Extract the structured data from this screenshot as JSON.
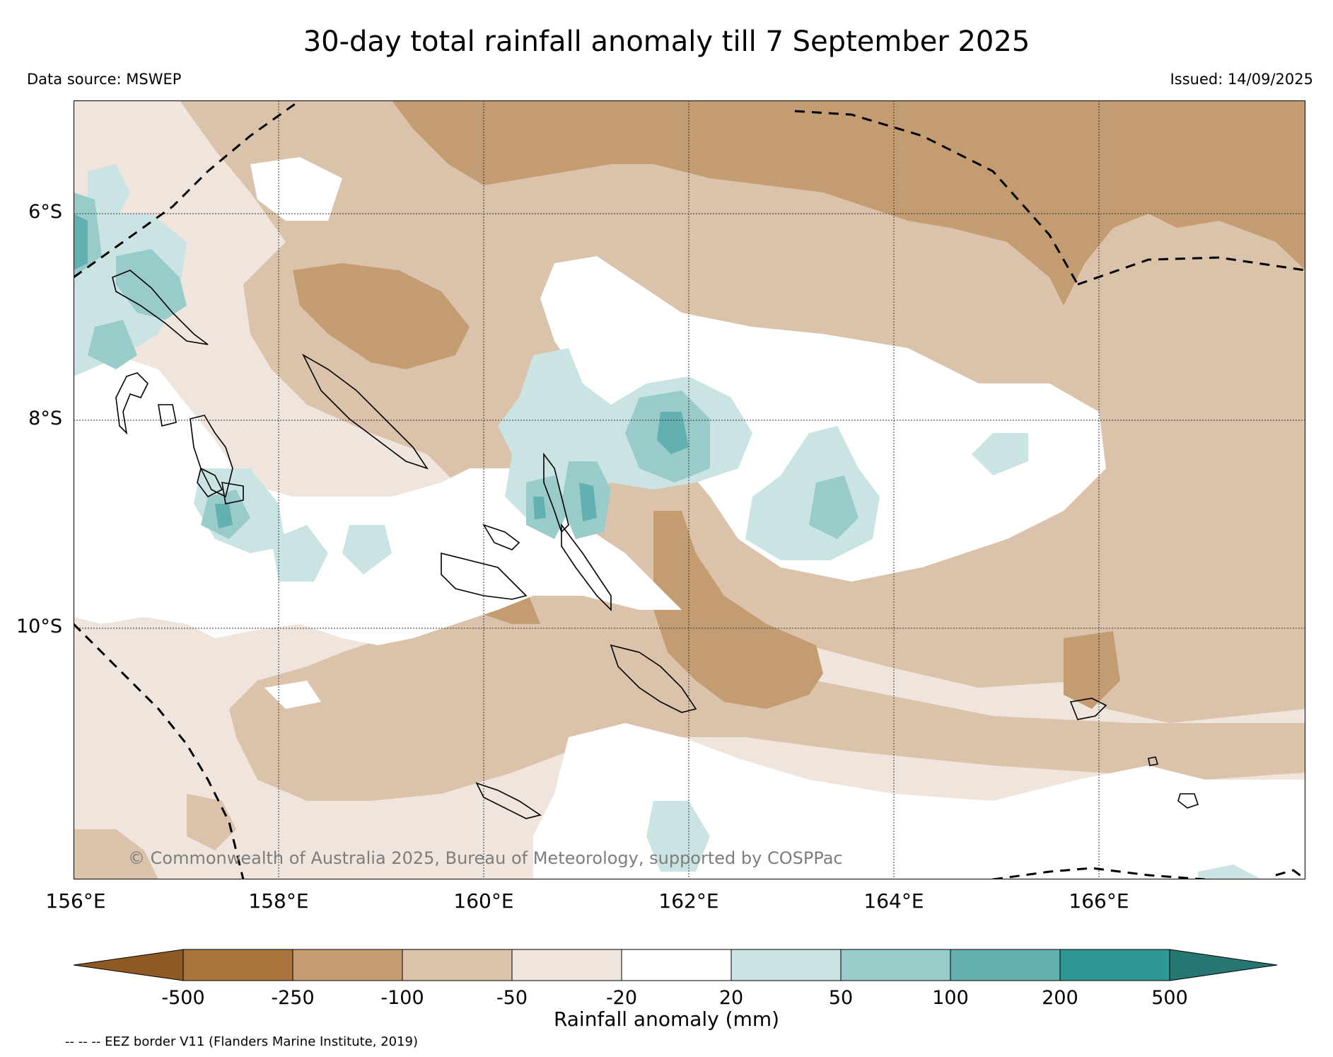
{
  "header": {
    "title": "30-day total rainfall anomaly till 7 September 2025",
    "data_source": "Data source: MSWEP",
    "issued": "Issued: 14/09/2025"
  },
  "map": {
    "lat_labels": [
      "6°S",
      "8°S",
      "10°S"
    ],
    "lon_labels": [
      "156°E",
      "158°E",
      "160°E",
      "162°E",
      "164°E",
      "166°E"
    ],
    "lon_range": [
      156,
      168
    ],
    "lat_range": [
      -12.4,
      -4.9
    ],
    "copyright": "© Commonwealth of Australia 2025, Bureau of Meteorology, supported by COSPPac"
  },
  "legend": {
    "ticks": [
      "-500",
      "-250",
      "-100",
      "-50",
      "-20",
      "20",
      "50",
      "100",
      "200",
      "500"
    ],
    "label": "Rainfall anomaly (mm)",
    "colors": {
      "lt_-500": "#8c5a22",
      "-500_-250": "#a8753c",
      "-250_-100": "#c49c72",
      "-100_-50": "#dbc2aa",
      "-50_-20": "#f0e5dc",
      "-20_20": "#ffffff",
      "20_50": "#cae4e3",
      "50_100": "#99cbca",
      "100_200": "#63b0b0",
      "200_500": "#2f9894",
      "gt_500": "#267672"
    }
  },
  "footnote": "-- -- -- EEZ border V11 (Flanders Marine Institute, 2019)"
}
